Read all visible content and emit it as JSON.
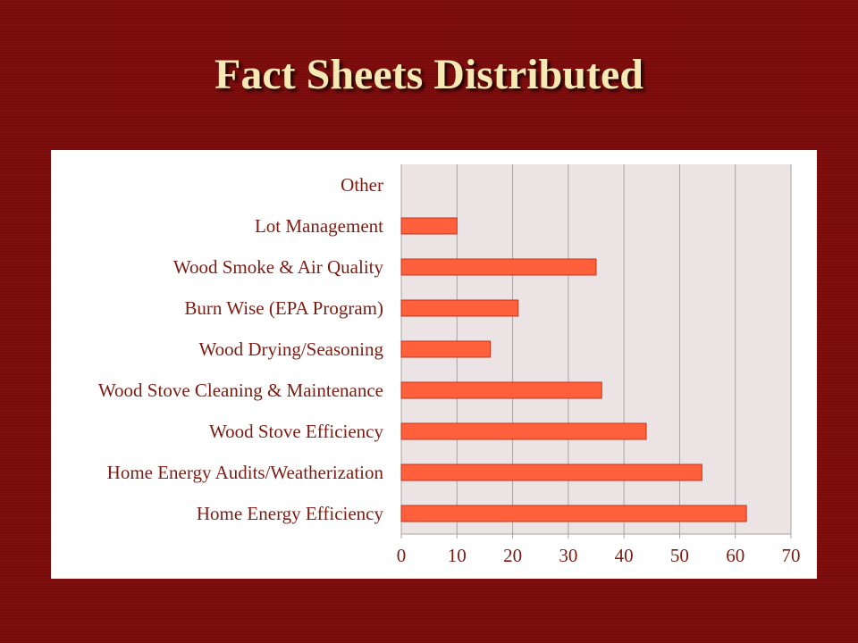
{
  "slide": {
    "title": "Fact Sheets Distributed"
  },
  "colors": {
    "background": "#7c0a0a",
    "title": "#f6e9b3",
    "bar": "#ff5f3b",
    "bar_stroke": "#c2361c",
    "plot_area": "#ece4e4",
    "label": "#7d1c12"
  },
  "chart_data": {
    "type": "bar",
    "orientation": "horizontal",
    "categories": [
      "Other",
      "Lot Management",
      "Wood Smoke & Air Quality",
      "Burn Wise (EPA Program)",
      "Wood Drying/Seasoning",
      "Wood Stove Cleaning & Maintenance",
      "Wood Stove Efficiency",
      "Home Energy Audits/Weatherization",
      "Home Energy Efficiency"
    ],
    "values": [
      0,
      10,
      35,
      21,
      16,
      36,
      44,
      54,
      62
    ],
    "xlim": [
      0,
      70
    ],
    "xticks": [
      "0",
      "10",
      "20",
      "30",
      "40",
      "50",
      "60",
      "70"
    ],
    "grid": "vertical",
    "legend": "none"
  }
}
